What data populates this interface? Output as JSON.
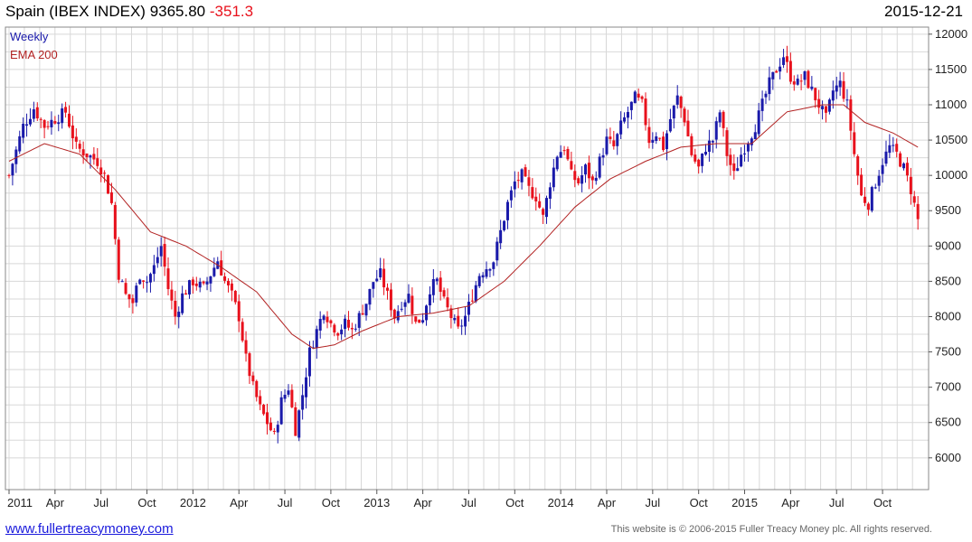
{
  "header": {
    "instrument": "Spain (IBEX INDEX)",
    "price": "9365.80",
    "change": "-351.3",
    "date": "2015-12-21"
  },
  "legend": {
    "series1": "Weekly",
    "series2": "EMA 200"
  },
  "footer": {
    "link": "www.fullertreacymoney.com",
    "copyright": "This website is © 2006-2015 Fuller Treacy Money plc. All rights reserved."
  },
  "colors": {
    "up": "#1a1aaa",
    "down": "#e8111c",
    "ema": "#b22222",
    "grid": "#d8d8d8",
    "text_red": "#e8111c"
  },
  "chart_data": {
    "type": "candlestick",
    "title": "Spain (IBEX INDEX) 9365.80 -351.3",
    "ylim": [
      5550,
      12100
    ],
    "y_ticks": [
      6000,
      6500,
      7000,
      7500,
      8000,
      8500,
      9000,
      9500,
      10000,
      10500,
      11000,
      11500,
      12000
    ],
    "x_tick_labels": [
      "2011",
      "Apr",
      "Jul",
      "Oct",
      "2012",
      "Apr",
      "Jul",
      "Oct",
      "2013",
      "Apr",
      "Jul",
      "Oct",
      "2014",
      "Apr",
      "Jul",
      "Oct",
      "2015",
      "Apr",
      "Jul",
      "Oct"
    ],
    "x_tick_weeks": [
      0,
      13,
      26,
      39,
      52,
      65,
      78,
      91,
      104,
      117,
      130,
      143,
      156,
      169,
      182,
      195,
      208,
      221,
      234,
      247
    ],
    "weekly_close_approx": [
      {
        "w": 0,
        "c": 10000
      },
      {
        "w": 4,
        "c": 10700
      },
      {
        "w": 7,
        "c": 10950
      },
      {
        "w": 10,
        "c": 10700
      },
      {
        "w": 13,
        "c": 10800
      },
      {
        "w": 16,
        "c": 10900
      },
      {
        "w": 19,
        "c": 10400
      },
      {
        "w": 22,
        "c": 10300
      },
      {
        "w": 25,
        "c": 10200
      },
      {
        "w": 27,
        "c": 10000
      },
      {
        "w": 29,
        "c": 9600
      },
      {
        "w": 31,
        "c": 8600
      },
      {
        "w": 33,
        "c": 8300
      },
      {
        "w": 35,
        "c": 8200
      },
      {
        "w": 37,
        "c": 8600
      },
      {
        "w": 39,
        "c": 8500
      },
      {
        "w": 41,
        "c": 8700
      },
      {
        "w": 43,
        "c": 9000
      },
      {
        "w": 45,
        "c": 8400
      },
      {
        "w": 47,
        "c": 8000
      },
      {
        "w": 49,
        "c": 8300
      },
      {
        "w": 52,
        "c": 8500
      },
      {
        "w": 55,
        "c": 8400
      },
      {
        "w": 57,
        "c": 8600
      },
      {
        "w": 59,
        "c": 8800
      },
      {
        "w": 61,
        "c": 8500
      },
      {
        "w": 63,
        "c": 8300
      },
      {
        "w": 65,
        "c": 8000
      },
      {
        "w": 67,
        "c": 7400
      },
      {
        "w": 69,
        "c": 7000
      },
      {
        "w": 71,
        "c": 6700
      },
      {
        "w": 73,
        "c": 6500
      },
      {
        "w": 75,
        "c": 6300
      },
      {
        "w": 77,
        "c": 6800
      },
      {
        "w": 79,
        "c": 7000
      },
      {
        "w": 81,
        "c": 6400
      },
      {
        "w": 83,
        "c": 6900
      },
      {
        "w": 85,
        "c": 7500
      },
      {
        "w": 87,
        "c": 7800
      },
      {
        "w": 89,
        "c": 8100
      },
      {
        "w": 91,
        "c": 7900
      },
      {
        "w": 93,
        "c": 7800
      },
      {
        "w": 95,
        "c": 7900
      },
      {
        "w": 97,
        "c": 7800
      },
      {
        "w": 99,
        "c": 8000
      },
      {
        "w": 101,
        "c": 8200
      },
      {
        "w": 103,
        "c": 8500
      },
      {
        "w": 105,
        "c": 8600
      },
      {
        "w": 107,
        "c": 8300
      },
      {
        "w": 109,
        "c": 8000
      },
      {
        "w": 111,
        "c": 8200
      },
      {
        "w": 113,
        "c": 8300
      },
      {
        "w": 115,
        "c": 7900
      },
      {
        "w": 117,
        "c": 8000
      },
      {
        "w": 119,
        "c": 8400
      },
      {
        "w": 121,
        "c": 8500
      },
      {
        "w": 123,
        "c": 8200
      },
      {
        "w": 125,
        "c": 8000
      },
      {
        "w": 127,
        "c": 7800
      },
      {
        "w": 129,
        "c": 8000
      },
      {
        "w": 131,
        "c": 8300
      },
      {
        "w": 133,
        "c": 8600
      },
      {
        "w": 135,
        "c": 8700
      },
      {
        "w": 137,
        "c": 8800
      },
      {
        "w": 139,
        "c": 9200
      },
      {
        "w": 141,
        "c": 9600
      },
      {
        "w": 143,
        "c": 9900
      },
      {
        "w": 145,
        "c": 10000
      },
      {
        "w": 147,
        "c": 9800
      },
      {
        "w": 149,
        "c": 9700
      },
      {
        "w": 151,
        "c": 9400
      },
      {
        "w": 153,
        "c": 9900
      },
      {
        "w": 155,
        "c": 10300
      },
      {
        "w": 157,
        "c": 10400
      },
      {
        "w": 159,
        "c": 10000
      },
      {
        "w": 161,
        "c": 9900
      },
      {
        "w": 163,
        "c": 10100
      },
      {
        "w": 165,
        "c": 9900
      },
      {
        "w": 167,
        "c": 10200
      },
      {
        "w": 169,
        "c": 10500
      },
      {
        "w": 171,
        "c": 10400
      },
      {
        "w": 173,
        "c": 10700
      },
      {
        "w": 175,
        "c": 10900
      },
      {
        "w": 177,
        "c": 11100
      },
      {
        "w": 179,
        "c": 11000
      },
      {
        "w": 181,
        "c": 10500
      },
      {
        "w": 183,
        "c": 10600
      },
      {
        "w": 185,
        "c": 10400
      },
      {
        "w": 187,
        "c": 10800
      },
      {
        "w": 189,
        "c": 11100
      },
      {
        "w": 191,
        "c": 10800
      },
      {
        "w": 193,
        "c": 10300
      },
      {
        "w": 195,
        "c": 10100
      },
      {
        "w": 197,
        "c": 10400
      },
      {
        "w": 199,
        "c": 10500
      },
      {
        "w": 201,
        "c": 10900
      },
      {
        "w": 203,
        "c": 10300
      },
      {
        "w": 205,
        "c": 10000
      },
      {
        "w": 207,
        "c": 10300
      },
      {
        "w": 209,
        "c": 10500
      },
      {
        "w": 211,
        "c": 10700
      },
      {
        "w": 213,
        "c": 11000
      },
      {
        "w": 215,
        "c": 11300
      },
      {
        "w": 217,
        "c": 11500
      },
      {
        "w": 219,
        "c": 11700
      },
      {
        "w": 221,
        "c": 11400
      },
      {
        "w": 223,
        "c": 11300
      },
      {
        "w": 225,
        "c": 11400
      },
      {
        "w": 227,
        "c": 11200
      },
      {
        "w": 229,
        "c": 11000
      },
      {
        "w": 231,
        "c": 10800
      },
      {
        "w": 233,
        "c": 11200
      },
      {
        "w": 235,
        "c": 11300
      },
      {
        "w": 237,
        "c": 11000
      },
      {
        "w": 239,
        "c": 10300
      },
      {
        "w": 241,
        "c": 9700
      },
      {
        "w": 243,
        "c": 9600
      },
      {
        "w": 245,
        "c": 9900
      },
      {
        "w": 247,
        "c": 10200
      },
      {
        "w": 249,
        "c": 10400
      },
      {
        "w": 251,
        "c": 10300
      },
      {
        "w": 253,
        "c": 10100
      },
      {
        "w": 255,
        "c": 9800
      },
      {
        "w": 257,
        "c": 9366
      }
    ],
    "ema200_approx": [
      {
        "w": 0,
        "c": 10200
      },
      {
        "w": 10,
        "c": 10450
      },
      {
        "w": 20,
        "c": 10300
      },
      {
        "w": 30,
        "c": 9800
      },
      {
        "w": 40,
        "c": 9200
      },
      {
        "w": 50,
        "c": 9000
      },
      {
        "w": 60,
        "c": 8700
      },
      {
        "w": 70,
        "c": 8350
      },
      {
        "w": 80,
        "c": 7750
      },
      {
        "w": 86,
        "c": 7550
      },
      {
        "w": 92,
        "c": 7600
      },
      {
        "w": 100,
        "c": 7800
      },
      {
        "w": 110,
        "c": 8000
      },
      {
        "w": 120,
        "c": 8050
      },
      {
        "w": 130,
        "c": 8150
      },
      {
        "w": 140,
        "c": 8500
      },
      {
        "w": 150,
        "c": 9000
      },
      {
        "w": 160,
        "c": 9550
      },
      {
        "w": 170,
        "c": 9950
      },
      {
        "w": 180,
        "c": 10200
      },
      {
        "w": 190,
        "c": 10400
      },
      {
        "w": 200,
        "c": 10450
      },
      {
        "w": 210,
        "c": 10450
      },
      {
        "w": 220,
        "c": 10900
      },
      {
        "w": 230,
        "c": 11000
      },
      {
        "w": 236,
        "c": 11000
      },
      {
        "w": 242,
        "c": 10750
      },
      {
        "w": 250,
        "c": 10600
      },
      {
        "w": 257,
        "c": 10400
      }
    ]
  }
}
